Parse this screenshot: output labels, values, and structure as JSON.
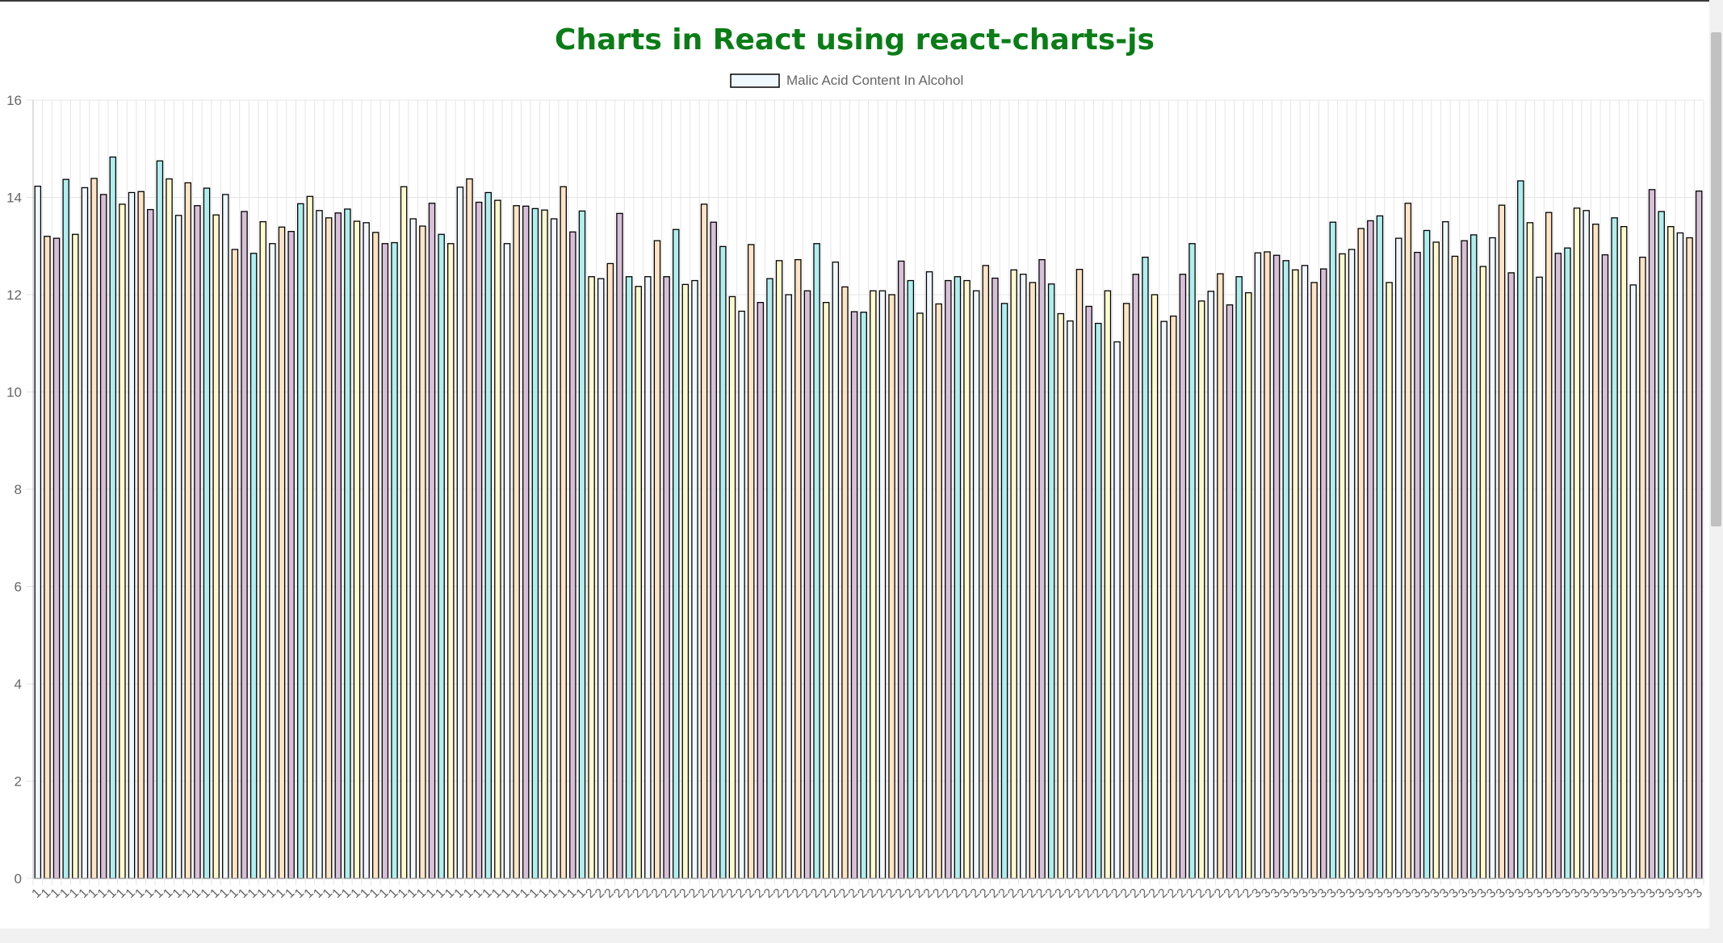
{
  "page": {
    "title": "Charts in React using react-charts-js"
  },
  "chart_data": {
    "type": "bar",
    "legend": {
      "label": "Malic Acid Content In Alcohol",
      "position": "top"
    },
    "ylim": [
      0,
      16
    ],
    "yticks": [
      0,
      2,
      4,
      6,
      8,
      10,
      12,
      14,
      16
    ],
    "grid": true,
    "colors": {
      "palette": [
        "#f0f8ff",
        "#ffe4c4",
        "#d8bfd8",
        "#afeeee",
        "#fffacd"
      ],
      "border": "#000000",
      "grid": "#e5e5e5",
      "tick_text": "#666666"
    },
    "categories": [
      "1",
      "1",
      "1",
      "1",
      "1",
      "1",
      "1",
      "1",
      "1",
      "1",
      "1",
      "1",
      "1",
      "1",
      "1",
      "1",
      "1",
      "1",
      "1",
      "1",
      "1",
      "1",
      "1",
      "1",
      "1",
      "1",
      "1",
      "1",
      "1",
      "1",
      "1",
      "1",
      "1",
      "1",
      "1",
      "1",
      "1",
      "1",
      "1",
      "1",
      "1",
      "1",
      "1",
      "1",
      "1",
      "1",
      "1",
      "1",
      "1",
      "1",
      "1",
      "1",
      "1",
      "1",
      "1",
      "1",
      "1",
      "1",
      "1",
      "2",
      "2",
      "2",
      "2",
      "2",
      "2",
      "2",
      "2",
      "2",
      "2",
      "2",
      "2",
      "2",
      "2",
      "2",
      "2",
      "2",
      "2",
      "2",
      "2",
      "2",
      "2",
      "2",
      "2",
      "2",
      "2",
      "2",
      "2",
      "2",
      "2",
      "2",
      "2",
      "2",
      "2",
      "2",
      "2",
      "2",
      "2",
      "2",
      "2",
      "2",
      "2",
      "2",
      "2",
      "2",
      "2",
      "2",
      "2",
      "2",
      "2",
      "2",
      "2",
      "2",
      "2",
      "2",
      "2",
      "2",
      "2",
      "2",
      "2",
      "2",
      "2",
      "2",
      "2",
      "2",
      "2",
      "2",
      "2",
      "2",
      "2",
      "2",
      "3",
      "3",
      "3",
      "3",
      "3",
      "3",
      "3",
      "3",
      "3",
      "3",
      "3",
      "3",
      "3",
      "3",
      "3",
      "3",
      "3",
      "3",
      "3",
      "3",
      "3",
      "3",
      "3",
      "3",
      "3",
      "3",
      "3",
      "3",
      "3",
      "3",
      "3",
      "3",
      "3",
      "3",
      "3",
      "3",
      "3",
      "3",
      "3",
      "3",
      "3",
      "3",
      "3",
      "3",
      "3",
      "3",
      "3",
      "3"
    ],
    "series": [
      {
        "name": "Malic Acid Content In Alcohol",
        "values": [
          14.23,
          13.2,
          13.16,
          14.37,
          13.24,
          14.2,
          14.39,
          14.06,
          14.83,
          13.86,
          14.1,
          14.12,
          13.75,
          14.75,
          14.38,
          13.63,
          14.3,
          13.83,
          14.19,
          13.64,
          14.06,
          12.93,
          13.71,
          12.85,
          13.5,
          13.05,
          13.39,
          13.3,
          13.87,
          14.02,
          13.73,
          13.58,
          13.68,
          13.76,
          13.51,
          13.48,
          13.28,
          13.05,
          13.07,
          14.22,
          13.56,
          13.41,
          13.88,
          13.24,
          13.05,
          14.21,
          14.38,
          13.9,
          14.1,
          13.94,
          13.05,
          13.83,
          13.82,
          13.77,
          13.74,
          13.56,
          14.22,
          13.29,
          13.72,
          12.37,
          12.33,
          12.64,
          13.67,
          12.37,
          12.17,
          12.37,
          13.11,
          12.37,
          13.34,
          12.21,
          12.29,
          13.86,
          13.49,
          12.99,
          11.96,
          11.66,
          13.03,
          11.84,
          12.33,
          12.7,
          12,
          12.72,
          12.08,
          13.05,
          11.84,
          12.67,
          12.16,
          11.65,
          11.64,
          12.08,
          12.08,
          12,
          12.69,
          12.29,
          11.62,
          12.47,
          11.81,
          12.29,
          12.37,
          12.29,
          12.08,
          12.6,
          12.34,
          11.82,
          12.51,
          12.42,
          12.25,
          12.72,
          12.22,
          11.61,
          11.46,
          12.52,
          11.76,
          11.41,
          12.08,
          11.03,
          11.82,
          12.42,
          12.77,
          12,
          11.45,
          11.56,
          12.42,
          13.05,
          11.87,
          12.07,
          12.43,
          11.79,
          12.37,
          12.04,
          12.86,
          12.88,
          12.81,
          12.7,
          12.51,
          12.6,
          12.25,
          12.53,
          13.49,
          12.84,
          12.93,
          13.36,
          13.52,
          13.62,
          12.25,
          13.16,
          13.88,
          12.87,
          13.32,
          13.08,
          13.5,
          12.79,
          13.11,
          13.23,
          12.58,
          13.17,
          13.84,
          12.45,
          14.34,
          13.48,
          12.36,
          13.69,
          12.85,
          12.96,
          13.78,
          13.73,
          13.45,
          12.82,
          13.58,
          13.4,
          12.2,
          12.77,
          14.16,
          13.71,
          13.4,
          13.27,
          13.17,
          14.13
        ]
      }
    ]
  }
}
